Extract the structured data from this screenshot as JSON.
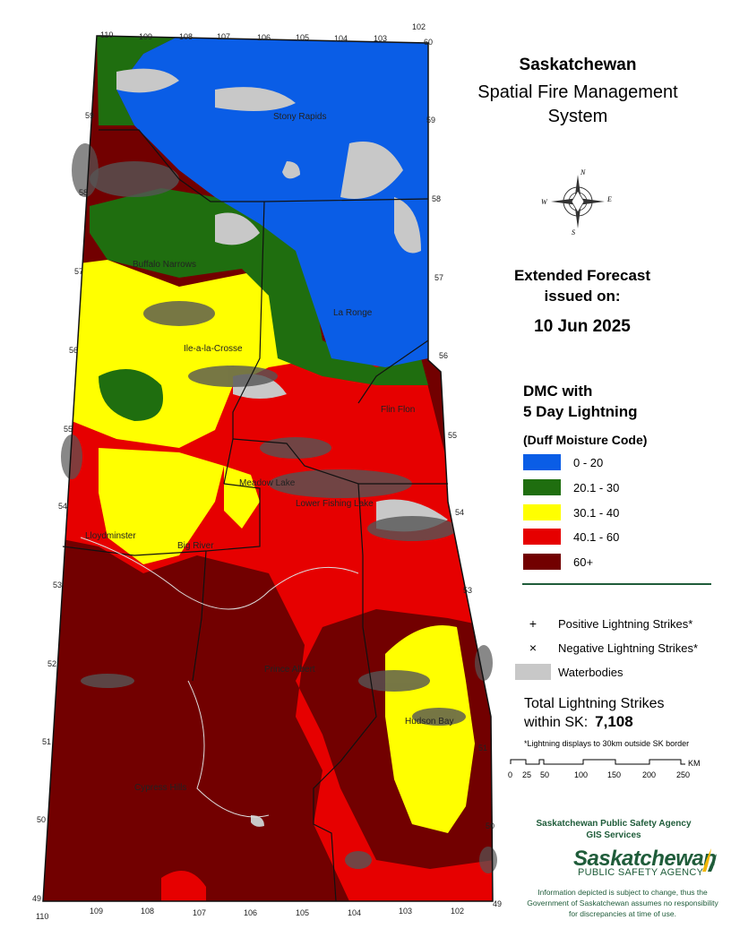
{
  "title": {
    "line1": "Saskatchewan",
    "line2": "Spatial Fire Management",
    "line3": "System"
  },
  "forecast": {
    "line1": "Extended Forecast",
    "line2": "issued on:",
    "date": "10 Jun 2025"
  },
  "legend": {
    "heading1": "DMC with",
    "heading2": "5 Day Lightning",
    "subheading": "(Duff Moisture Code)",
    "classes": [
      {
        "label": "0 - 20",
        "color": "#0a5de6"
      },
      {
        "label": "20.1 - 30",
        "color": "#1f6e0f"
      },
      {
        "label": "30.1 - 40",
        "color": "#ffff00"
      },
      {
        "label": "40.1 - 60",
        "color": "#e60000"
      },
      {
        "label": "60+",
        "color": "#720000"
      }
    ],
    "positive_symbol": "+",
    "positive_label": "Positive Lightning Strikes*",
    "negative_symbol": "×",
    "negative_label": "Negative Lightning Strikes*",
    "water_label": "Waterbodies"
  },
  "totals": {
    "line1": "Total Lightning Strikes",
    "line2": "within SK:",
    "value": "7,108"
  },
  "note": "*Lightning displays to 30km outside SK border",
  "scale": {
    "unit": "KM",
    "ticks": [
      "0",
      "25",
      "50",
      "100",
      "150",
      "200",
      "250"
    ]
  },
  "agency": {
    "line1": "Saskatchewan Public Safety Agency",
    "line2": "GIS  Services",
    "logo_main": "Saskatchewan",
    "logo_sub": "PUBLIC SAFETY AGENCY"
  },
  "disclaimer": "Information depicted is subject to change, thus the Government of Saskatchewan assumes no responsibility for discrepancies at time of use.",
  "compass": {
    "n": "N",
    "s": "S",
    "e": "E",
    "w": "W"
  },
  "places": [
    {
      "name": "Stony Rapids"
    },
    {
      "name": "Buffalo Narrows"
    },
    {
      "name": "Ile-a-la-Crosse"
    },
    {
      "name": "La Ronge"
    },
    {
      "name": "Meadow Lake"
    },
    {
      "name": "Flin Flon"
    },
    {
      "name": "Lower Fishing Lake"
    },
    {
      "name": "Lloydminster"
    },
    {
      "name": "Big River"
    },
    {
      "name": "Prince Albert"
    },
    {
      "name": "Hudson Bay"
    },
    {
      "name": "Cypress Hills"
    }
  ],
  "lon_top": [
    "110",
    "109",
    "108",
    "107",
    "106",
    "105",
    "104",
    "103",
    "102"
  ],
  "lon_bottom": [
    "110",
    "109",
    "108",
    "107",
    "106",
    "105",
    "104",
    "103",
    "102"
  ],
  "lat_left": [
    "59",
    "58",
    "57",
    "56",
    "55",
    "54",
    "53",
    "52",
    "51",
    "50",
    "49"
  ],
  "lat_right": [
    "60",
    "59",
    "58",
    "57",
    "56",
    "55",
    "54",
    "53",
    "51",
    "50",
    "49"
  ]
}
